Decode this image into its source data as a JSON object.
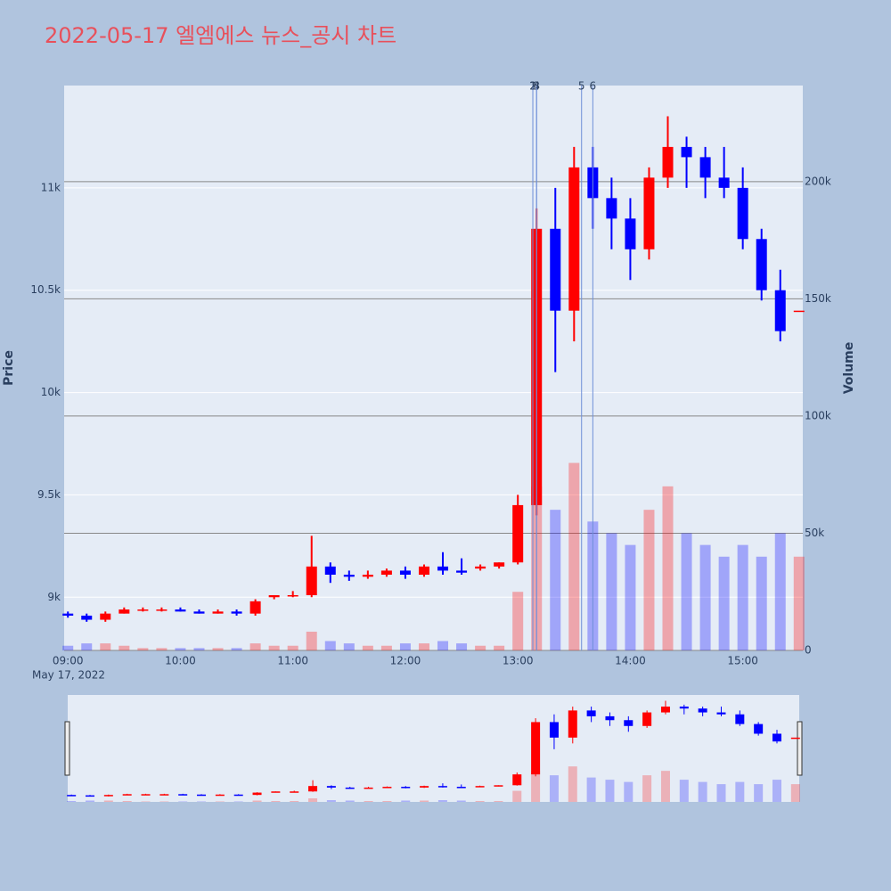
{
  "chart_data": {
    "type": "candlestick",
    "title": "2022-05-17 엘엠에스 뉴스_공시 차트",
    "x": [
      "09:00",
      "09:10",
      "09:20",
      "09:30",
      "09:40",
      "09:50",
      "10:00",
      "10:10",
      "10:20",
      "10:30",
      "10:40",
      "10:50",
      "11:00",
      "11:10",
      "11:20",
      "11:30",
      "11:40",
      "11:50",
      "12:00",
      "12:10",
      "12:20",
      "12:30",
      "12:40",
      "12:50",
      "13:00",
      "13:10",
      "13:20",
      "13:30",
      "13:40",
      "13:50",
      "14:00",
      "14:10",
      "14:20",
      "14:30",
      "14:40",
      "14:50",
      "15:00",
      "15:10",
      "15:20",
      "15:30"
    ],
    "open": [
      8920,
      8910,
      8890,
      8920,
      8940,
      8940,
      8940,
      8930,
      8920,
      8930,
      8920,
      9000,
      9010,
      9010,
      9150,
      9110,
      9100,
      9110,
      9130,
      9110,
      9150,
      9130,
      9140,
      9150,
      9170,
      9450,
      10800,
      10400,
      11100,
      10950,
      10850,
      10700,
      11050,
      11200,
      11150,
      11050,
      11000,
      10750,
      10500,
      10400
    ],
    "high": [
      8930,
      8920,
      8930,
      8950,
      8950,
      8950,
      8950,
      8940,
      8940,
      8940,
      8990,
      9010,
      9030,
      9300,
      9170,
      9130,
      9130,
      9140,
      9150,
      9160,
      9220,
      9190,
      9160,
      9170,
      9500,
      10900,
      11000,
      11200,
      11200,
      11050,
      10950,
      11100,
      11350,
      11250,
      11200,
      11200,
      11100,
      10800,
      10600,
      10400
    ],
    "low": [
      8900,
      8880,
      8880,
      8920,
      8930,
      8930,
      8930,
      8920,
      8920,
      8910,
      8910,
      8990,
      9000,
      9000,
      9070,
      9080,
      9090,
      9100,
      9090,
      9100,
      9110,
      9110,
      9130,
      9140,
      9160,
      9400,
      10100,
      10250,
      10800,
      10700,
      10550,
      10650,
      11000,
      11000,
      10950,
      10950,
      10700,
      10450,
      10250,
      10400
    ],
    "close": [
      8910,
      8890,
      8920,
      8940,
      8940,
      8940,
      8930,
      8920,
      8930,
      8920,
      8980,
      9010,
      9010,
      9150,
      9110,
      9100,
      9110,
      9130,
      9110,
      9150,
      9130,
      9120,
      9150,
      9170,
      9450,
      10800,
      10400,
      11100,
      10950,
      10850,
      10700,
      11050,
      11200,
      11150,
      11050,
      11000,
      10750,
      10500,
      10300,
      10400
    ],
    "volume": [
      2000,
      3000,
      3000,
      2000,
      1000,
      1000,
      1000,
      1000,
      1000,
      1000,
      3000,
      2000,
      2000,
      8000,
      4000,
      3000,
      2000,
      2000,
      3000,
      3000,
      4000,
      3000,
      2000,
      2000,
      25000,
      70000,
      60000,
      80000,
      55000,
      50000,
      45000,
      60000,
      70000,
      50000,
      45000,
      40000,
      45000,
      40000,
      50000,
      40000
    ],
    "increasing_color": "#ff0000",
    "decreasing_color": "#0000ff",
    "xlim": [
      "08:58",
      "15:32"
    ],
    "xticks": [
      "09:00",
      "10:00",
      "11:00",
      "12:00",
      "13:00",
      "14:00",
      "15:00"
    ],
    "x_date_label": "May 17, 2022",
    "ylim": [
      8740,
      11500
    ],
    "yticks": [
      {
        "value": 9000,
        "label": "9k"
      },
      {
        "value": 9500,
        "label": "9.5k"
      },
      {
        "value": 10000,
        "label": "10k"
      },
      {
        "value": 10500,
        "label": "10.5k"
      },
      {
        "value": 11000,
        "label": "11k"
      }
    ],
    "y2lim": [
      0,
      241000
    ],
    "y2ticks": [
      0,
      {
        "value": 50000,
        "label": "50k"
      },
      {
        "value": 100000,
        "label": "100k"
      },
      {
        "value": 150000,
        "label": "150k"
      },
      {
        "value": 200000,
        "label": "200k"
      }
    ],
    "y_title": "Price",
    "y2_title": "Volume",
    "news": [
      {
        "x": "13:08",
        "label": "1"
      },
      {
        "x": "13:08",
        "label": "2"
      },
      {
        "x": "13:10",
        "label": "3"
      },
      {
        "x": "13:10",
        "label": "4"
      },
      {
        "x": "13:34",
        "label": "5"
      },
      {
        "x": "13:40",
        "label": "6"
      }
    ],
    "news_color": "#6f8fd8"
  }
}
